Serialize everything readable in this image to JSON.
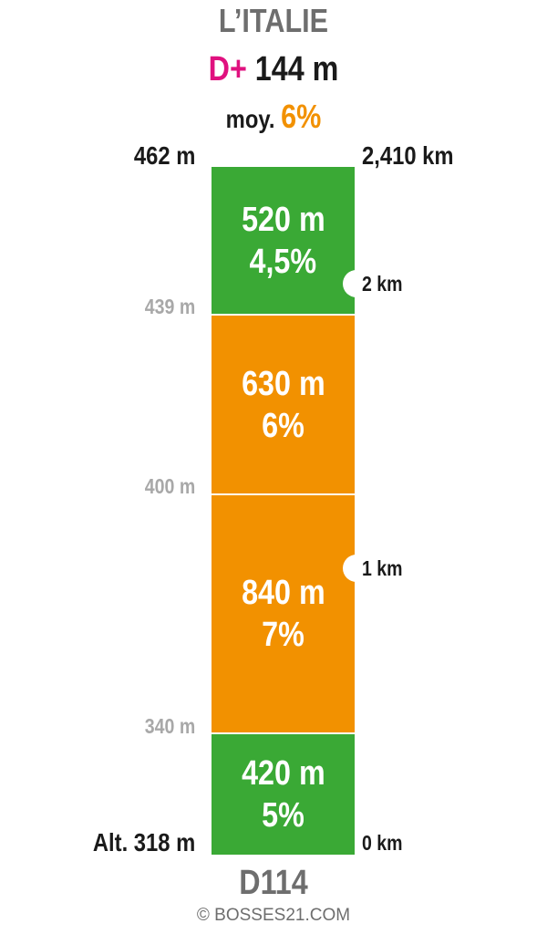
{
  "title": "L’ITALIE",
  "elevation_gain": {
    "prefix": "D+",
    "value": "144 m",
    "prefix_color": "#e0117f"
  },
  "average": {
    "label": "moy.",
    "value": "6%",
    "value_color": "#f29100"
  },
  "top": {
    "altitude": "462 m",
    "distance": "2,410 km"
  },
  "bottom": {
    "altitude": "Alt. 318 m",
    "distance": "0 km"
  },
  "altitude_marks": [
    "439 m",
    "400 m",
    "340 m"
  ],
  "km_marks": [
    "2 km",
    "1 km"
  ],
  "segments": [
    {
      "length": "520 m",
      "gradient": "4,5%",
      "color": "#3aa935"
    },
    {
      "length": "630 m",
      "gradient": "6%",
      "color": "#f29100"
    },
    {
      "length": "840 m",
      "gradient": "7%",
      "color": "#f29100"
    },
    {
      "length": "420 m",
      "gradient": "5%",
      "color": "#3aa935"
    }
  ],
  "road": "D114",
  "credit": "© BOSSES21.COM"
}
